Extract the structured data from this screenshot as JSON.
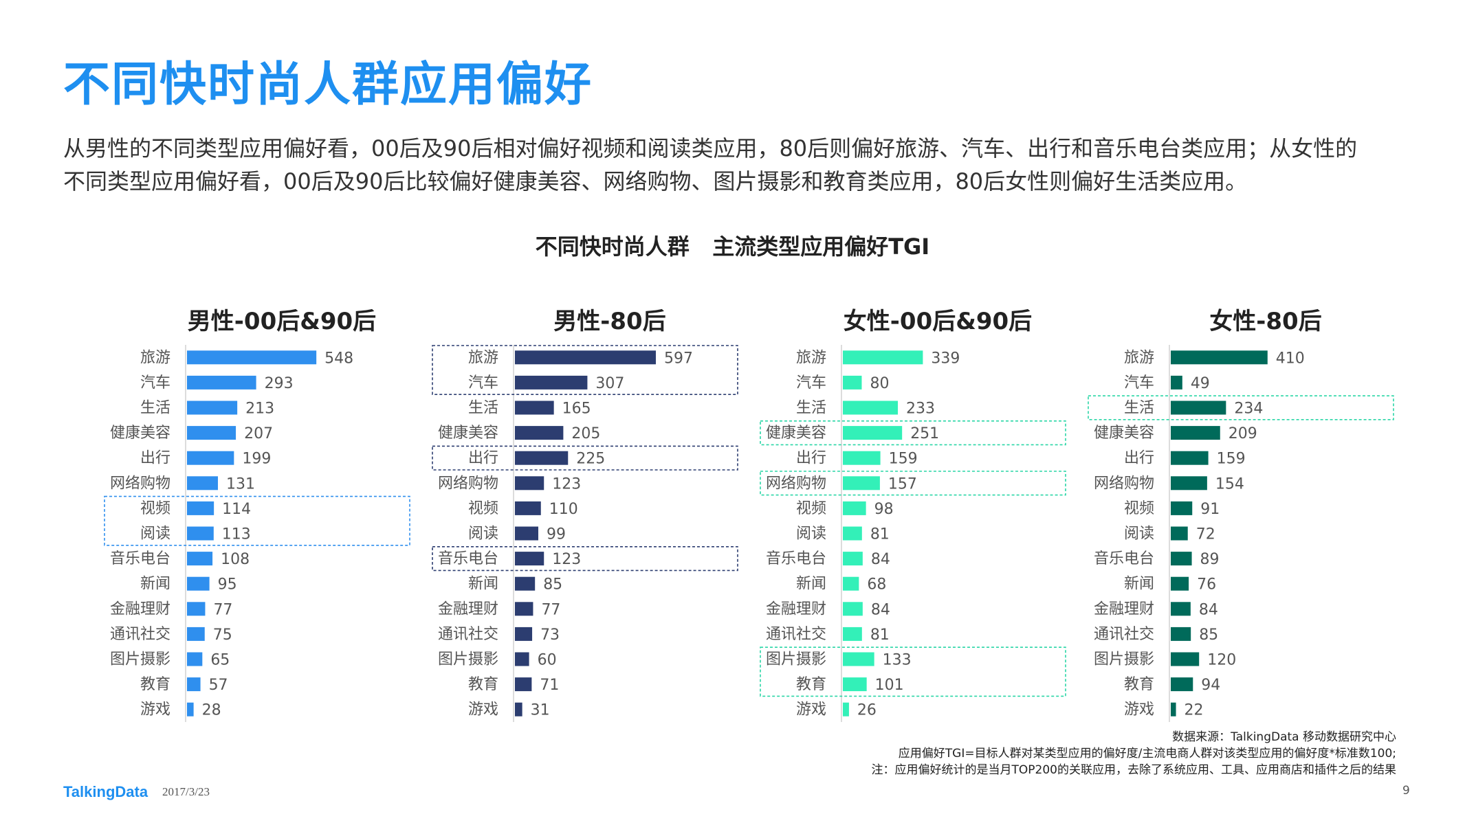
{
  "title": "不同快时尚人群应用偏好",
  "intro": [
    "从男性的不同类型应用偏好看，00后及90后相对偏好视频和阅读类应用，80后则偏好旅游、汽车、出行和音乐电台类应用；从女性的",
    "不同类型应用偏好看，00后及90后比较偏好健康美容、网络购物、图片摄影和教育类应用，80后女性则偏好生活类应用。"
  ],
  "chart_title": "不同快时尚人群   主流类型应用偏好TGI",
  "chart_data": [
    {
      "type": "bar",
      "orientation": "horizontal",
      "title": "男性-00后&90后",
      "color": "#2f8fee",
      "categories": [
        "旅游",
        "汽车",
        "生活",
        "健康美容",
        "出行",
        "网络购物",
        "视频",
        "阅读",
        "音乐电台",
        "新闻",
        "金融理财",
        "通讯社交",
        "图片摄影",
        "教育",
        "游戏"
      ],
      "values": [
        548,
        293,
        213,
        207,
        199,
        131,
        114,
        113,
        108,
        95,
        77,
        75,
        65,
        57,
        28
      ],
      "highlight_groups": [
        [
          "视频",
          "阅读"
        ]
      ]
    },
    {
      "type": "bar",
      "orientation": "horizontal",
      "title": "男性-80后",
      "color": "#2c3d70",
      "categories": [
        "旅游",
        "汽车",
        "生活",
        "健康美容",
        "出行",
        "网络购物",
        "视频",
        "阅读",
        "音乐电台",
        "新闻",
        "金融理财",
        "通讯社交",
        "图片摄影",
        "教育",
        "游戏"
      ],
      "values": [
        597,
        307,
        165,
        205,
        225,
        123,
        110,
        99,
        123,
        85,
        77,
        73,
        60,
        71,
        31
      ],
      "highlight_groups": [
        [
          "旅游",
          "汽车"
        ],
        [
          "出行"
        ],
        [
          "音乐电台"
        ]
      ]
    },
    {
      "type": "bar",
      "orientation": "horizontal",
      "title": "女性-00后&90后",
      "color": "#33f0b8",
      "categories": [
        "旅游",
        "汽车",
        "生活",
        "健康美容",
        "出行",
        "网络购物",
        "视频",
        "阅读",
        "音乐电台",
        "新闻",
        "金融理财",
        "通讯社交",
        "图片摄影",
        "教育",
        "游戏"
      ],
      "values": [
        339,
        80,
        233,
        251,
        159,
        157,
        98,
        81,
        84,
        68,
        84,
        81,
        133,
        101,
        26
      ],
      "highlight_groups": [
        [
          "健康美容"
        ],
        [
          "网络购物"
        ],
        [
          "图片摄影",
          "教育"
        ]
      ]
    },
    {
      "type": "bar",
      "orientation": "horizontal",
      "title": "女性-80后",
      "color": "#006a5a",
      "categories": [
        "旅游",
        "汽车",
        "生活",
        "健康美容",
        "出行",
        "网络购物",
        "视频",
        "阅读",
        "音乐电台",
        "新闻",
        "金融理财",
        "通讯社交",
        "图片摄影",
        "教育",
        "游戏"
      ],
      "values": [
        410,
        49,
        234,
        209,
        159,
        154,
        91,
        72,
        89,
        76,
        84,
        85,
        120,
        94,
        22
      ],
      "highlight_groups": [
        [
          "生活"
        ]
      ]
    }
  ],
  "footer": {
    "source": "数据来源：TalkingData  移动数据研究中心",
    "definition": "应用偏好TGI=目标人群对某类型应用的偏好度/主流电商人群对该类型应用的偏好度*标准数100;",
    "note": "注：应用偏好统计的是当月TOP200的关联应用，去除了系统应用、工具、应用商店和插件之后的结果",
    "brand": "TalkingData",
    "date": "2017/3/23",
    "page": "9"
  }
}
